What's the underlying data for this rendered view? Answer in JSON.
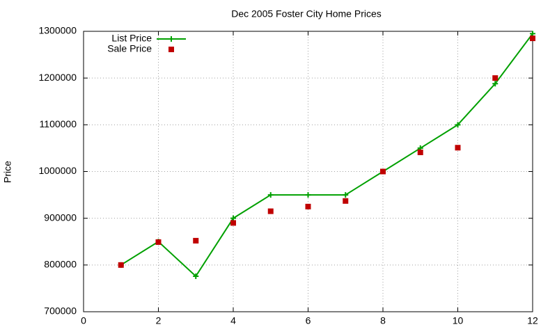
{
  "chart_data": {
    "type": "line",
    "title": "Dec 2005 Foster City Home Prices",
    "y_label": "Price",
    "x": [
      1,
      2,
      3,
      4,
      5,
      6,
      7,
      8,
      9,
      10,
      11,
      12
    ],
    "series": [
      {
        "name": "List Price",
        "color": "#00a000",
        "mode": "linespoints",
        "values": [
          800000,
          850000,
          776000,
          900000,
          950000,
          950000,
          950000,
          1000000,
          1050000,
          1100000,
          1188000,
          1295000
        ]
      },
      {
        "name": "Sale Price",
        "color": "#c00000",
        "mode": "points",
        "values": [
          800000,
          849000,
          852000,
          890000,
          915000,
          925000,
          937000,
          1000000,
          1041000,
          1051000,
          1200000,
          1285000
        ]
      }
    ],
    "xlim": [
      0,
      12
    ],
    "xticks": [
      0,
      2,
      4,
      6,
      8,
      10,
      12
    ],
    "ylim": [
      700000,
      1300000
    ],
    "yticks": [
      700000,
      800000,
      900000,
      1000000,
      1100000,
      1200000,
      1300000
    ],
    "grid": true,
    "legend": "top-left"
  }
}
